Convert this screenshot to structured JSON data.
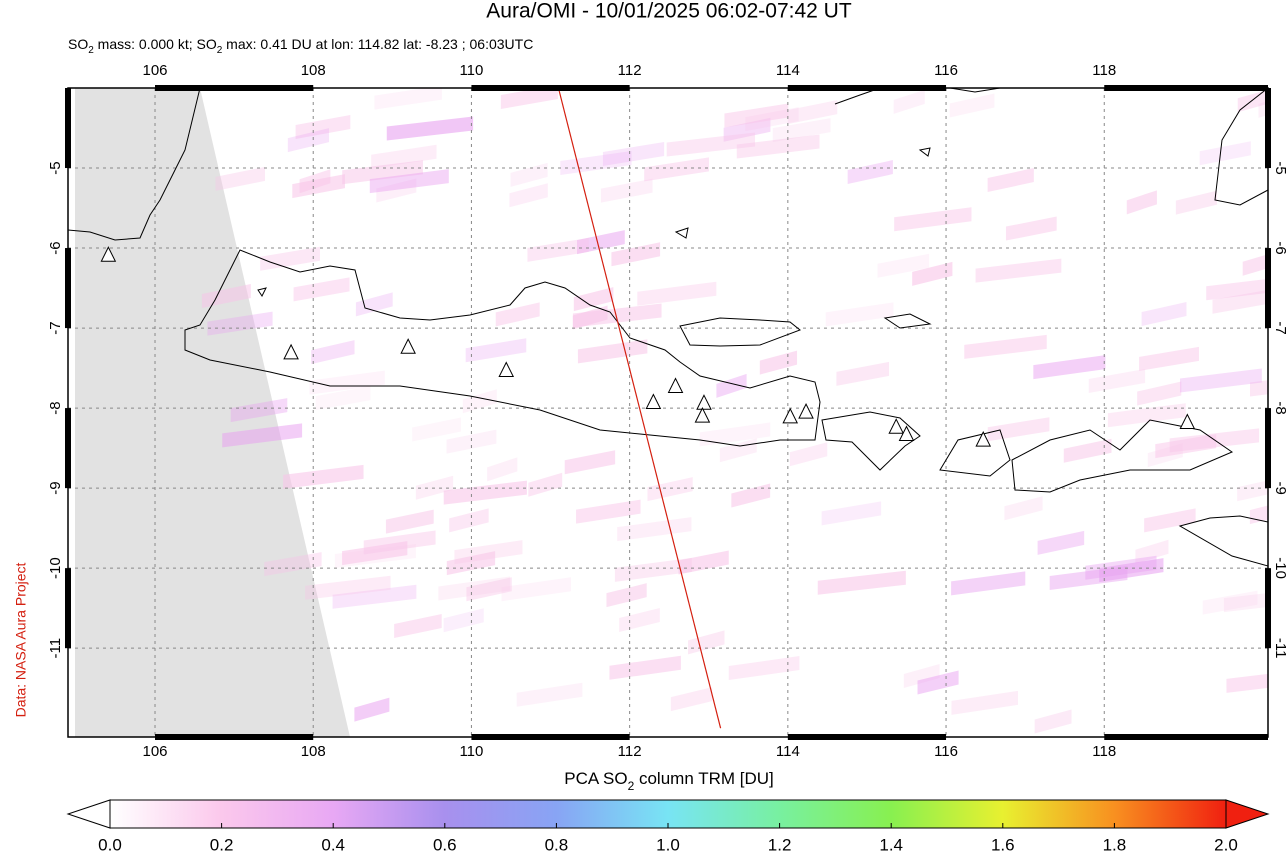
{
  "header": {
    "title": "Aura/OMI - 10/01/2025 06:02-07:42 UT",
    "subtitle": [
      "SO",
      "2",
      " mass: 0.000 kt; SO",
      "2",
      " max: 0.41 DU at lon: 114.82 lat: -8.23 ; 06:03UTC"
    ]
  },
  "side_label": "Data: NASA Aura Project",
  "map": {
    "lonlim": [
      104.9,
      120.07
    ],
    "latlim": [
      -12.11,
      -4.0
    ],
    "lonticks": [
      106,
      108,
      110,
      112,
      114,
      116,
      118
    ],
    "latticks": [
      -5,
      -6,
      -7,
      -8,
      -9,
      -10,
      -11
    ],
    "overpass": [
      [
        111.1,
        -4.0
      ],
      [
        113.15,
        -12.0
      ]
    ],
    "overpass_color": "#d42010",
    "nodata_color": "#e2e2e2",
    "volcanoes": [
      [
        105.41,
        -6.09
      ],
      [
        107.72,
        -7.31
      ],
      [
        109.2,
        -7.24
      ],
      [
        110.44,
        -7.53
      ],
      [
        112.3,
        -7.93
      ],
      [
        112.58,
        -7.73
      ],
      [
        112.94,
        -7.94
      ],
      [
        112.92,
        -8.1
      ],
      [
        114.03,
        -8.11
      ],
      [
        114.23,
        -8.05
      ],
      [
        115.37,
        -8.24
      ],
      [
        115.5,
        -8.33
      ],
      [
        116.47,
        -8.4
      ],
      [
        119.05,
        -8.18
      ]
    ]
  },
  "colorbar": {
    "label": [
      "PCA SO",
      "2",
      " column TRM [DU]"
    ],
    "range": [
      0,
      2
    ],
    "ticks": [
      {
        "value": 0,
        "label": "0.0"
      },
      {
        "value": 0.2,
        "label": "0.2"
      },
      {
        "value": 0.4,
        "label": "0.4"
      },
      {
        "value": 0.6,
        "label": "0.6"
      },
      {
        "value": 0.8,
        "label": "0.8"
      },
      {
        "value": 1.0,
        "label": "1.0"
      },
      {
        "value": 1.2,
        "label": "1.2"
      },
      {
        "value": 1.4,
        "label": "1.4"
      },
      {
        "value": 1.6,
        "label": "1.6"
      },
      {
        "value": 1.8,
        "label": "1.8"
      },
      {
        "value": 2.0,
        "label": "2.0"
      }
    ],
    "colors": [
      "#ffffff",
      "#fbc8ec",
      "#e8a8f4",
      "#a890ee",
      "#88a4f4",
      "#78e4f4",
      "#78f0a0",
      "#88f050",
      "#e8f030",
      "#f89020",
      "#f02010"
    ]
  }
}
